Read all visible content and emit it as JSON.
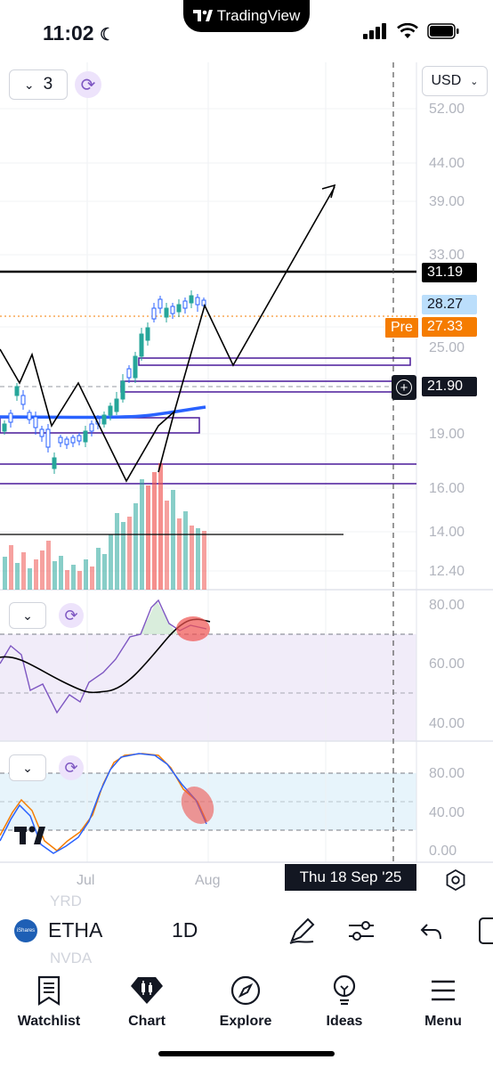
{
  "status": {
    "time": "11:02",
    "island_label": "TradingView"
  },
  "toolbar": {
    "indicator_count": "3",
    "currency": "USD"
  },
  "price_axis": [
    "52.00",
    "44.00",
    "39.00",
    "33.00",
    "25.00",
    "19.00",
    "16.00",
    "14.00",
    "12.40"
  ],
  "price_tags": {
    "level": "31.19",
    "last": "28.27",
    "pre_label": "Pre",
    "pre": "27.33",
    "cursor": "21.90"
  },
  "rsi_axis": [
    "80.00",
    "60.00",
    "40.00"
  ],
  "stoch_axis": [
    "80.00",
    "40.00",
    "0.00"
  ],
  "time_axis": {
    "jul": "Jul",
    "aug": "Aug",
    "cursor_date": "Thu 18 Sep '25"
  },
  "symbol": {
    "name": "ETHA",
    "interval": "1D",
    "logo_text": "iShares",
    "faded_above": "YRD",
    "faded_below": "NVDA"
  },
  "tabs": [
    {
      "label": "Watchlist",
      "icon": "watchlist-icon"
    },
    {
      "label": "Chart",
      "icon": "chart-icon"
    },
    {
      "label": "Explore",
      "icon": "compass-icon"
    },
    {
      "label": "Ideas",
      "icon": "lightbulb-icon"
    },
    {
      "label": "Menu",
      "icon": "menu-icon"
    }
  ],
  "colors": {
    "up": "#26a69a",
    "down": "#ef5350",
    "accent": "#2962ff",
    "orange": "#f57c00",
    "purple": "#4a1a9a"
  }
}
